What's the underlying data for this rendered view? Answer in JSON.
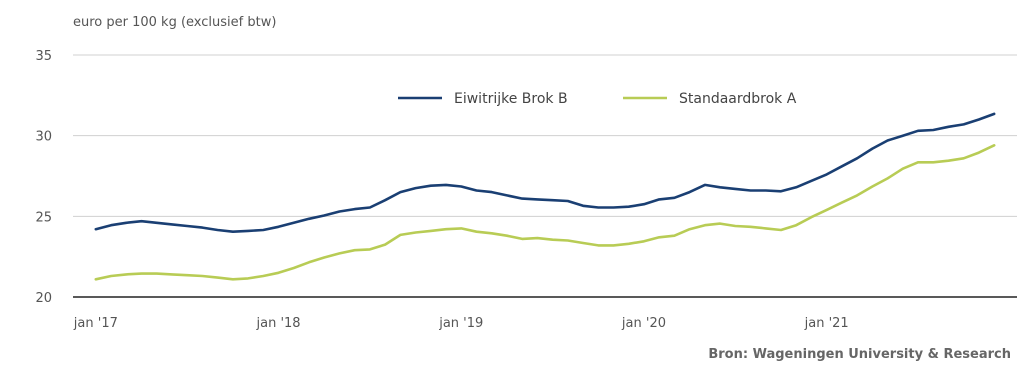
{
  "chart_data": {
    "type": "line",
    "ylabel": "euro per 100 kg (exclusief btw)",
    "ylim": [
      20,
      35
    ],
    "yticks": [
      20,
      25,
      30,
      35
    ],
    "xticks": [
      {
        "label": "jan '17",
        "x": 0
      },
      {
        "label": "jan '18",
        "x": 12
      },
      {
        "label": "jan '19",
        "x": 24
      },
      {
        "label": "jan '20",
        "x": 36
      },
      {
        "label": "jan '21",
        "x": 48
      }
    ],
    "xlim": [
      -1.5,
      60.5
    ],
    "grid": "horizontal",
    "legend": "top-center",
    "series": [
      {
        "name": "Eiwitrijke Brok B",
        "color": "#1a3f73",
        "values": [
          24.2,
          24.45,
          24.6,
          24.7,
          24.6,
          24.5,
          24.4,
          24.3,
          24.15,
          24.05,
          24.1,
          24.15,
          24.35,
          24.6,
          24.85,
          25.05,
          25.3,
          25.45,
          25.55,
          26.0,
          26.5,
          26.75,
          26.9,
          26.95,
          26.85,
          26.6,
          26.5,
          26.3,
          26.1,
          26.05,
          26.0,
          25.95,
          25.65,
          25.55,
          25.55,
          25.6,
          25.75,
          26.05,
          26.15,
          26.5,
          26.95,
          26.8,
          26.7,
          26.6,
          26.6,
          26.55,
          26.8,
          27.2,
          27.6,
          28.1,
          28.6,
          29.2,
          29.7,
          30.0,
          30.3,
          30.35,
          30.55,
          30.7,
          31.0,
          31.35
        ]
      },
      {
        "name": "Standaardbrok A",
        "color": "#b8cc55",
        "values": [
          21.1,
          21.3,
          21.4,
          21.45,
          21.45,
          21.4,
          21.35,
          21.3,
          21.2,
          21.1,
          21.15,
          21.3,
          21.5,
          21.8,
          22.15,
          22.45,
          22.7,
          22.9,
          22.95,
          23.25,
          23.85,
          24.0,
          24.1,
          24.2,
          24.25,
          24.05,
          23.95,
          23.8,
          23.6,
          23.65,
          23.55,
          23.5,
          23.35,
          23.2,
          23.2,
          23.3,
          23.45,
          23.7,
          23.8,
          24.2,
          24.45,
          24.55,
          24.4,
          24.35,
          24.25,
          24.15,
          24.45,
          24.95,
          25.4,
          25.85,
          26.3,
          26.85,
          27.35,
          27.95,
          28.35,
          28.35,
          28.45,
          28.6,
          28.95,
          29.4
        ]
      }
    ]
  },
  "source": "Bron: Wageningen University & Research"
}
